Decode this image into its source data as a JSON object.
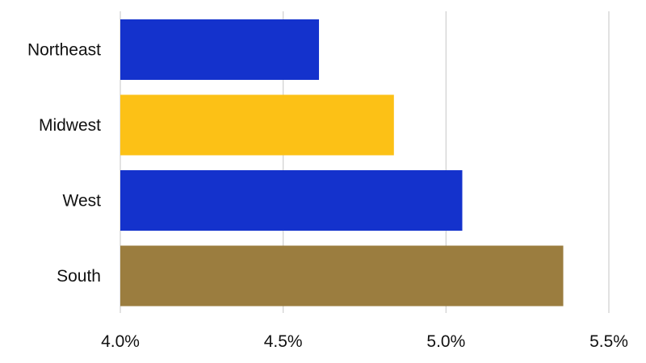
{
  "chart_data": {
    "type": "bar",
    "orientation": "horizontal",
    "title": "",
    "xlabel": "",
    "ylabel": "",
    "categories": [
      "Northeast",
      "Midwest",
      "West",
      "South"
    ],
    "values": [
      4.61,
      4.84,
      5.05,
      5.36
    ],
    "colors": [
      "#1432cc",
      "#fcc116",
      "#1432cc",
      "#9b7d3f"
    ],
    "xlim": [
      4.0,
      5.5
    ],
    "xticks": [
      4.0,
      4.5,
      5.0,
      5.5
    ],
    "xtick_labels": [
      "4.0%",
      "4.5%",
      "5.0%",
      "5.5%"
    ],
    "grid": "vertical",
    "legend": "none"
  }
}
